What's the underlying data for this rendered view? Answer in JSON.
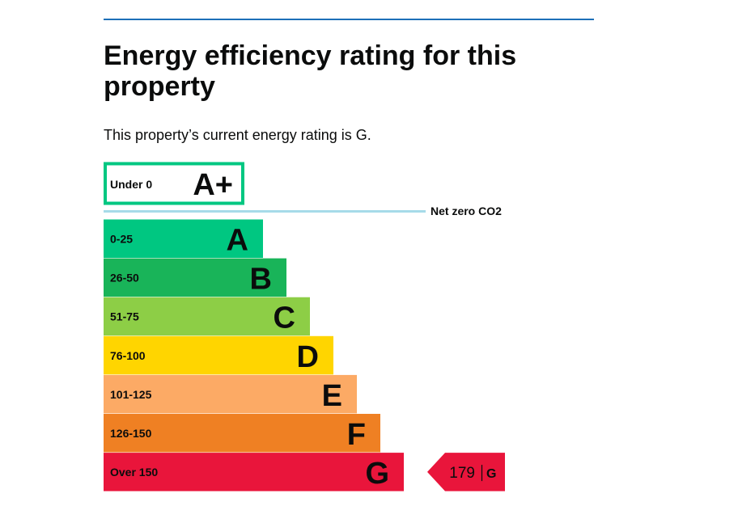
{
  "page": {
    "title": "Energy efficiency rating for this property",
    "intro": "This property’s current energy rating is G."
  },
  "chart_data": {
    "type": "bar",
    "bands": [
      {
        "range": "Under 0",
        "letter": "A+",
        "color": "#00c781",
        "outlined": true
      },
      {
        "range": "0-25",
        "letter": "A",
        "color": "#00c781"
      },
      {
        "range": "26-50",
        "letter": "B",
        "color": "#19b459"
      },
      {
        "range": "51-75",
        "letter": "C",
        "color": "#8dce46"
      },
      {
        "range": "76-100",
        "letter": "D",
        "color": "#ffd500"
      },
      {
        "range": "101-125",
        "letter": "E",
        "color": "#fcaa65"
      },
      {
        "range": "126-150",
        "letter": "F",
        "color": "#ef8023"
      },
      {
        "range": "Over 150",
        "letter": "G",
        "color": "#e9153b"
      }
    ],
    "net_zero_label": "Net zero CO2",
    "net_zero_color": "#a6dbe9",
    "current": {
      "score": "179",
      "letter": "G",
      "color": "#e9153b"
    }
  }
}
